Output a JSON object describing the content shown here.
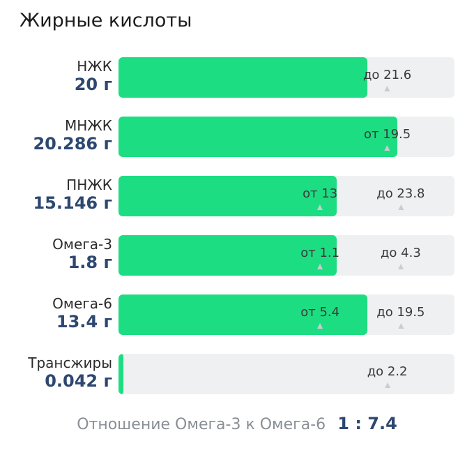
{
  "title": "Жирные кислоты",
  "colors": {
    "fill": "#1ddd82",
    "track": "#eff0f2",
    "amount": "#2d4770"
  },
  "rows": [
    {
      "name": "НЖК",
      "amount": "20 г",
      "fill_fraction": 0.74,
      "markers": [
        {
          "text": "до 21.6",
          "pos": 0.8
        }
      ]
    },
    {
      "name": "МНЖК",
      "amount": "20.286 г",
      "fill_fraction": 0.83,
      "markers": [
        {
          "text": "от 19.5",
          "pos": 0.8
        }
      ]
    },
    {
      "name": "ПНЖК",
      "amount": "15.146 г",
      "fill_fraction": 0.65,
      "markers": [
        {
          "text": "от 13",
          "pos": 0.6
        },
        {
          "text": "до 23.8",
          "pos": 0.84
        }
      ]
    },
    {
      "name": "Омега-3",
      "amount": "1.8 г",
      "fill_fraction": 0.65,
      "markers": [
        {
          "text": "от 1.1",
          "pos": 0.6
        },
        {
          "text": "до 4.3",
          "pos": 0.84
        }
      ]
    },
    {
      "name": "Омега-6",
      "amount": "13.4 г",
      "fill_fraction": 0.74,
      "markers": [
        {
          "text": "от 5.4",
          "pos": 0.6
        },
        {
          "text": "до 19.5",
          "pos": 0.84
        }
      ]
    },
    {
      "name": "Трансжиры",
      "amount": "0.042 г",
      "fill_fraction": 0.015,
      "markers": [
        {
          "text": "до 2.2",
          "pos": 0.8
        }
      ]
    }
  ],
  "ratio": {
    "label": "Отношение Омега-3 к Омега-6",
    "value": "1 : 7.4"
  }
}
